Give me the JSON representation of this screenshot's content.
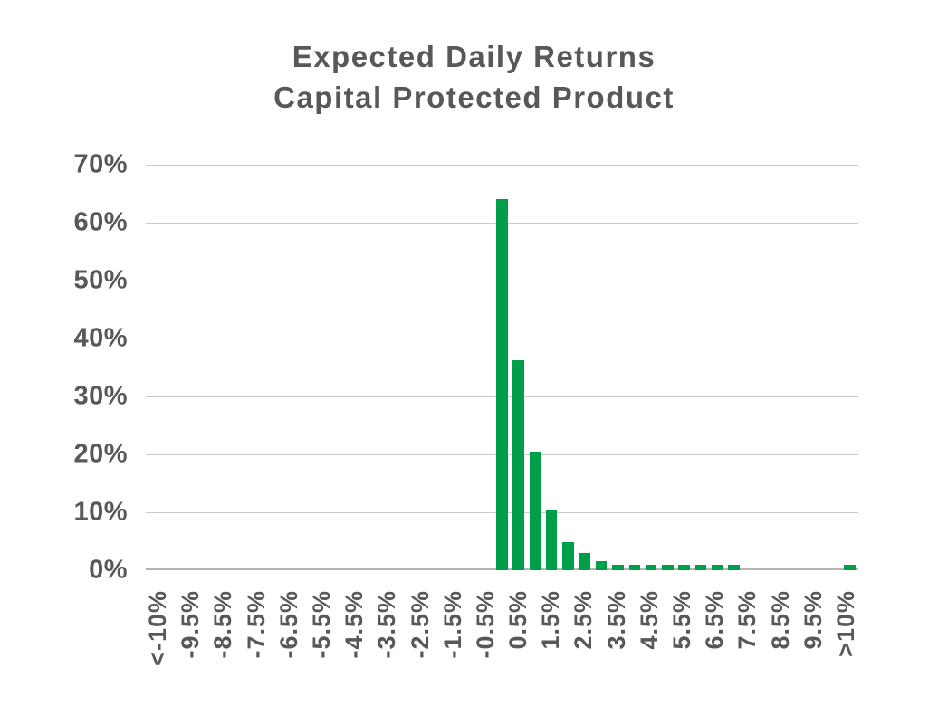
{
  "chart_data": {
    "type": "bar",
    "title": "Expected Daily Returns",
    "subtitle": "Capital Protected Product",
    "xlabel": "",
    "ylabel": "",
    "ylim": [
      0,
      70
    ],
    "y_tick_step_percent": 10,
    "y_tick_labels": [
      "70%",
      "60%",
      "50%",
      "40%",
      "30%",
      "20%",
      "10%",
      "0%"
    ],
    "bin_size": "0.5%",
    "x_tick_rotation_degrees": 90,
    "x_tick_labels_shown": [
      "<-10%",
      "-9.5%",
      "-8.5%",
      "-7.5%",
      "-6.5%",
      "-5.5%",
      "-4.5%",
      "-3.5%",
      "-2.5%",
      "-1.5%",
      "-0.5%",
      "0.5%",
      "1.5%",
      "2.5%",
      "3.5%",
      "4.5%",
      "5.5%",
      "6.5%",
      "7.5%",
      "8.5%",
      "9.5%",
      ">10%"
    ],
    "categories": [
      "<-10%",
      "",
      "-9.5%",
      "",
      "-8.5%",
      "",
      "-7.5%",
      "",
      "-6.5%",
      "",
      "-5.5%",
      "",
      "-4.5%",
      "",
      "-3.5%",
      "",
      "-2.5%",
      "",
      "-1.5%",
      "",
      "-0.5%",
      "",
      "0.5%",
      "",
      "1.5%",
      "",
      "2.5%",
      "",
      "3.5%",
      "",
      "4.5%",
      "",
      "5.5%",
      "",
      "6.5%",
      "",
      "7.5%",
      "",
      "8.5%",
      "",
      "9.5%",
      "",
      ">10%"
    ],
    "values": [
      0,
      0,
      0,
      0,
      0,
      0,
      0,
      0,
      0,
      0,
      0,
      0,
      0,
      0,
      0,
      0,
      0,
      0,
      0,
      0,
      0,
      64,
      36.3,
      20.5,
      10.3,
      4.9,
      3,
      1.5,
      1,
      1,
      1,
      1,
      1,
      1,
      1,
      1,
      0,
      0,
      0,
      0,
      0,
      0,
      1
    ],
    "grid": "horizontal",
    "legend_position": "none",
    "bar_color": "#009E49"
  },
  "colors": {
    "background": "#FFFFFF",
    "bar": "#009E49",
    "gridline": "#C9CACB",
    "axis_line": "#B3B5B6",
    "text": "#58585B"
  }
}
